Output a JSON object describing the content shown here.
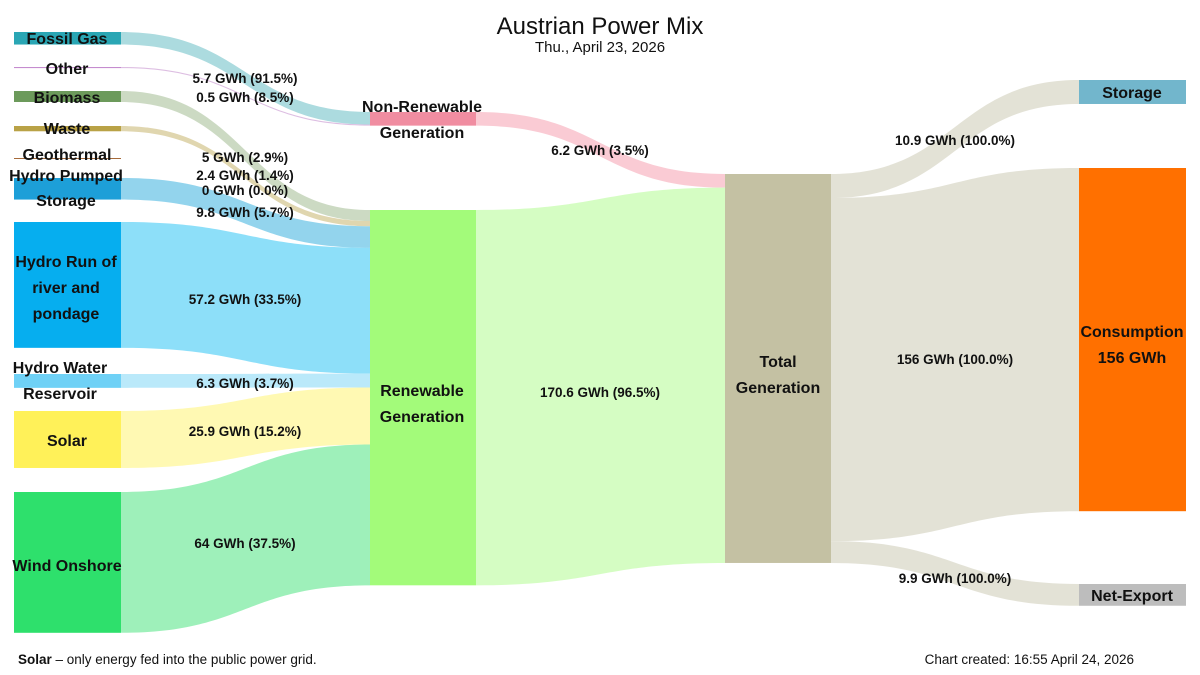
{
  "chart_data": {
    "type": "sankey",
    "title": "Austrian Power Mix",
    "subtitle": "Thu., April 23, 2026",
    "unit": "GWh",
    "nodes": {
      "fossil_gas": {
        "label": "Fossil Gas",
        "color": "#2aa6b4"
      },
      "other": {
        "label": "Other",
        "color": "#c58ccf"
      },
      "biomass": {
        "label": "Biomass",
        "color": "#6c9a5b"
      },
      "waste": {
        "label": "Waste",
        "color": "#b9a246"
      },
      "geothermal": {
        "label": "Geothermal",
        "color": "#a66a3a"
      },
      "hydro_pumped": {
        "label": "Hydro Pumped Storage",
        "label_lines": [
          "Hydro Pumped",
          "Storage"
        ],
        "color": "#1d9fd8"
      },
      "hydro_ror": {
        "label": "Hydro Run of river and pondage",
        "label_lines": [
          "Hydro Run of",
          "river and",
          "pondage"
        ],
        "color": "#06aeef"
      },
      "hydro_res": {
        "label": "Hydro Water Reservoir",
        "label_lines": [
          "Hydro Water",
          "Reservoir"
        ],
        "color": "#6fd1f6"
      },
      "solar": {
        "label": "Solar",
        "color": "#fff159"
      },
      "wind": {
        "label": "Wind Onshore",
        "color": "#2ee06c"
      },
      "nonrenew": {
        "label": "Non-Renewable Generation",
        "label_lines": [
          "Non-Renewable",
          "Generation"
        ],
        "color": "#f08da1"
      },
      "renew": {
        "label": "Renewable Generation",
        "label_lines": [
          "Renewable",
          "Generation"
        ],
        "color": "#a3fb7a"
      },
      "total": {
        "label": "Total Generation",
        "label_lines": [
          "Total",
          "Generation"
        ],
        "color": "#c4c1a3"
      },
      "storage": {
        "label": "Storage",
        "color": "#72b6cc"
      },
      "consumption": {
        "label": "Consumption 156 GWh",
        "label_lines": [
          "Consumption",
          "156 GWh"
        ],
        "color": "#ff7000"
      },
      "net_export": {
        "label": "Net-Export",
        "color": "#bdbdbd"
      }
    },
    "links": [
      {
        "source": "fossil_gas",
        "target": "nonrenew",
        "value": 5.7,
        "label": "5.7 GWh (91.5%)",
        "color": "#a3d7dc"
      },
      {
        "source": "other",
        "target": "nonrenew",
        "value": 0.5,
        "label": "0.5 GWh (8.5%)",
        "color": "#d9b7df"
      },
      {
        "source": "biomass",
        "target": "renew",
        "value": 5,
        "label": "5 GWh (2.9%)",
        "color": "#c6d6bd"
      },
      {
        "source": "waste",
        "target": "renew",
        "value": 2.4,
        "label": "2.4 GWh (1.4%)",
        "color": "#ddd2a6"
      },
      {
        "source": "geothermal",
        "target": "renew",
        "value": 0,
        "label": "0 GWh (0.0%)",
        "color": "#d8bfa7"
      },
      {
        "source": "hydro_pumped",
        "target": "renew",
        "value": 9.8,
        "label": "9.8 GWh (5.7%)",
        "color": "#87cfeb"
      },
      {
        "source": "hydro_ror",
        "target": "renew",
        "value": 57.2,
        "label": "57.2 GWh (33.5%)",
        "color": "#81dbf8"
      },
      {
        "source": "hydro_res",
        "target": "renew",
        "value": 6.3,
        "label": "6.3 GWh (3.7%)",
        "color": "#b3e7fa"
      },
      {
        "source": "solar",
        "target": "renew",
        "value": 25.9,
        "label": "25.9 GWh (15.2%)",
        "color": "#fff8ab"
      },
      {
        "source": "wind",
        "target": "renew",
        "value": 64,
        "label": "64 GWh (37.5%)",
        "color": "#93eeb3"
      },
      {
        "source": "nonrenew",
        "target": "total",
        "value": 6.2,
        "label": "6.2 GWh (3.5%)",
        "color": "#f9c5cf"
      },
      {
        "source": "renew",
        "target": "total",
        "value": 170.6,
        "label": "170.6 GWh (96.5%)",
        "color": "#d0fdbc"
      },
      {
        "source": "total",
        "target": "storage",
        "value": 10.9,
        "label": "10.9 GWh (100.0%)",
        "color": "#e0dfd1"
      },
      {
        "source": "total",
        "target": "consumption",
        "value": 156,
        "label": "156 GWh (100.0%)",
        "color": "#e0dfd1"
      },
      {
        "source": "total",
        "target": "net_export",
        "value": 9.9,
        "label": "9.9 GWh (100.0%)",
        "color": "#e0dfd1"
      }
    ]
  },
  "footnote": {
    "term": "Solar",
    "text": " –  only energy fed into the public power grid."
  },
  "created": "Chart created: 16:55 April 24, 2026"
}
